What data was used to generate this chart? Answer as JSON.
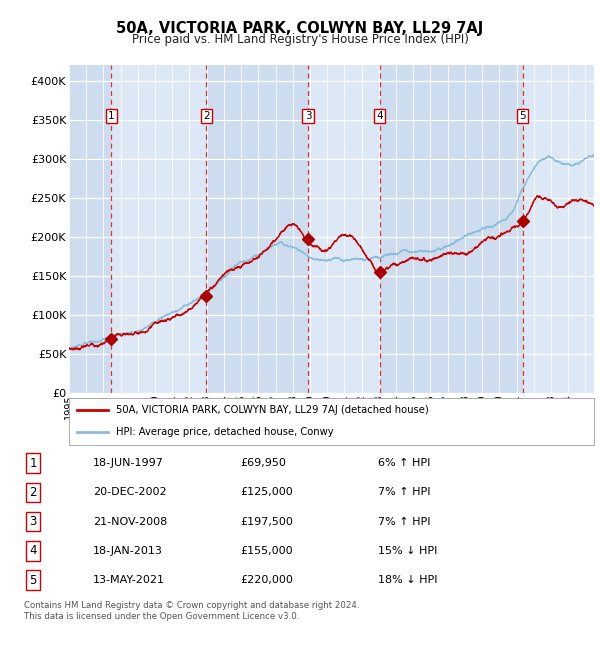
{
  "title": "50A, VICTORIA PARK, COLWYN BAY, LL29 7AJ",
  "subtitle": "Price paid vs. HM Land Registry's House Price Index (HPI)",
  "background_color": "#dce8f5",
  "plot_bg_color": "#dce8f5",
  "grid_color": "#ffffff",
  "red_line_color": "#cc0000",
  "blue_line_color": "#8bbcda",
  "sale_marker_color": "#aa0000",
  "dashed_line_color": "#dd3333",
  "label_box_color": "#ffffff",
  "label_border_color": "#cc0000",
  "ylim": [
    0,
    420000
  ],
  "yticks": [
    0,
    50000,
    100000,
    150000,
    200000,
    250000,
    300000,
    350000,
    400000
  ],
  "ytick_labels": [
    "£0",
    "£50K",
    "£100K",
    "£150K",
    "£200K",
    "£250K",
    "£300K",
    "£350K",
    "£400K"
  ],
  "xstart": 1995.0,
  "xend": 2025.5,
  "sale_dates_x": [
    1997.46,
    2002.97,
    2008.89,
    2013.04,
    2021.36
  ],
  "sale_prices_y": [
    69950,
    125000,
    197500,
    155000,
    220000
  ],
  "sale_labels": [
    "1",
    "2",
    "3",
    "4",
    "5"
  ],
  "legend_entry1": "50A, VICTORIA PARK, COLWYN BAY, LL29 7AJ (detached house)",
  "legend_entry2": "HPI: Average price, detached house, Conwy",
  "table_data": [
    [
      "1",
      "18-JUN-1997",
      "£69,950",
      "6% ↑ HPI"
    ],
    [
      "2",
      "20-DEC-2002",
      "£125,000",
      "7% ↑ HPI"
    ],
    [
      "3",
      "21-NOV-2008",
      "£197,500",
      "7% ↑ HPI"
    ],
    [
      "4",
      "18-JAN-2013",
      "£155,000",
      "15% ↓ HPI"
    ],
    [
      "5",
      "13-MAY-2021",
      "£220,000",
      "18% ↓ HPI"
    ]
  ],
  "footer_text": "Contains HM Land Registry data © Crown copyright and database right 2024.\nThis data is licensed under the Open Government Licence v3.0.",
  "stripe_colors": [
    "#cddcee",
    "#dce8f5",
    "#cddcee",
    "#dce8f5",
    "#cddcee",
    "#dce8f5"
  ]
}
